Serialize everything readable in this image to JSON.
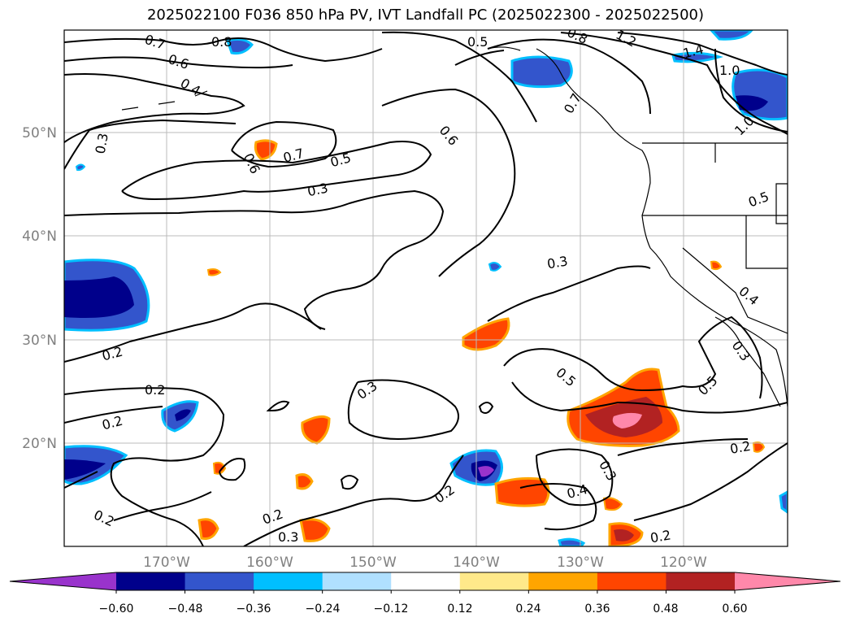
{
  "title": "2025022100 F036 850 hPa PV, IVT Landfall PC (2025022300 - 2025022500)",
  "map": {
    "lat_ticks": [
      "50°N",
      "40°N",
      "30°N",
      "20°N"
    ],
    "lon_ticks": [
      "170°W",
      "160°W",
      "150°W",
      "140°W",
      "130°W",
      "120°W"
    ]
  },
  "contour_labels": [
    "0.8",
    "0.7",
    "0.6",
    "0.4",
    "0.3",
    "0.5",
    "0.8",
    "1.2",
    "1.4",
    "1.0",
    "1.0",
    "0.7",
    "0.6",
    "0.7",
    "0.6",
    "0.5",
    "0.3",
    "0.5",
    "0.3",
    "0.4",
    "0.2",
    "0.2",
    "0.2",
    "0.3",
    "0.5",
    "0.5",
    "0.3",
    "0.3",
    "0.4",
    "0.2",
    "0.2",
    "0.2",
    "0.3",
    "0.2"
  ],
  "colorbar": {
    "colors": [
      "#9933cc",
      "#00008b",
      "#3355cc",
      "#00bfff",
      "#b0e0ff",
      "#ffffff",
      "#ffe98a",
      "#ffa500",
      "#ff4500",
      "#b22222",
      "#ff88aa"
    ],
    "tick_labels": [
      "−0.60",
      "−0.48",
      "−0.36",
      "−0.24",
      "−0.12",
      "0.12",
      "0.24",
      "0.36",
      "0.48",
      "0.60"
    ]
  }
}
